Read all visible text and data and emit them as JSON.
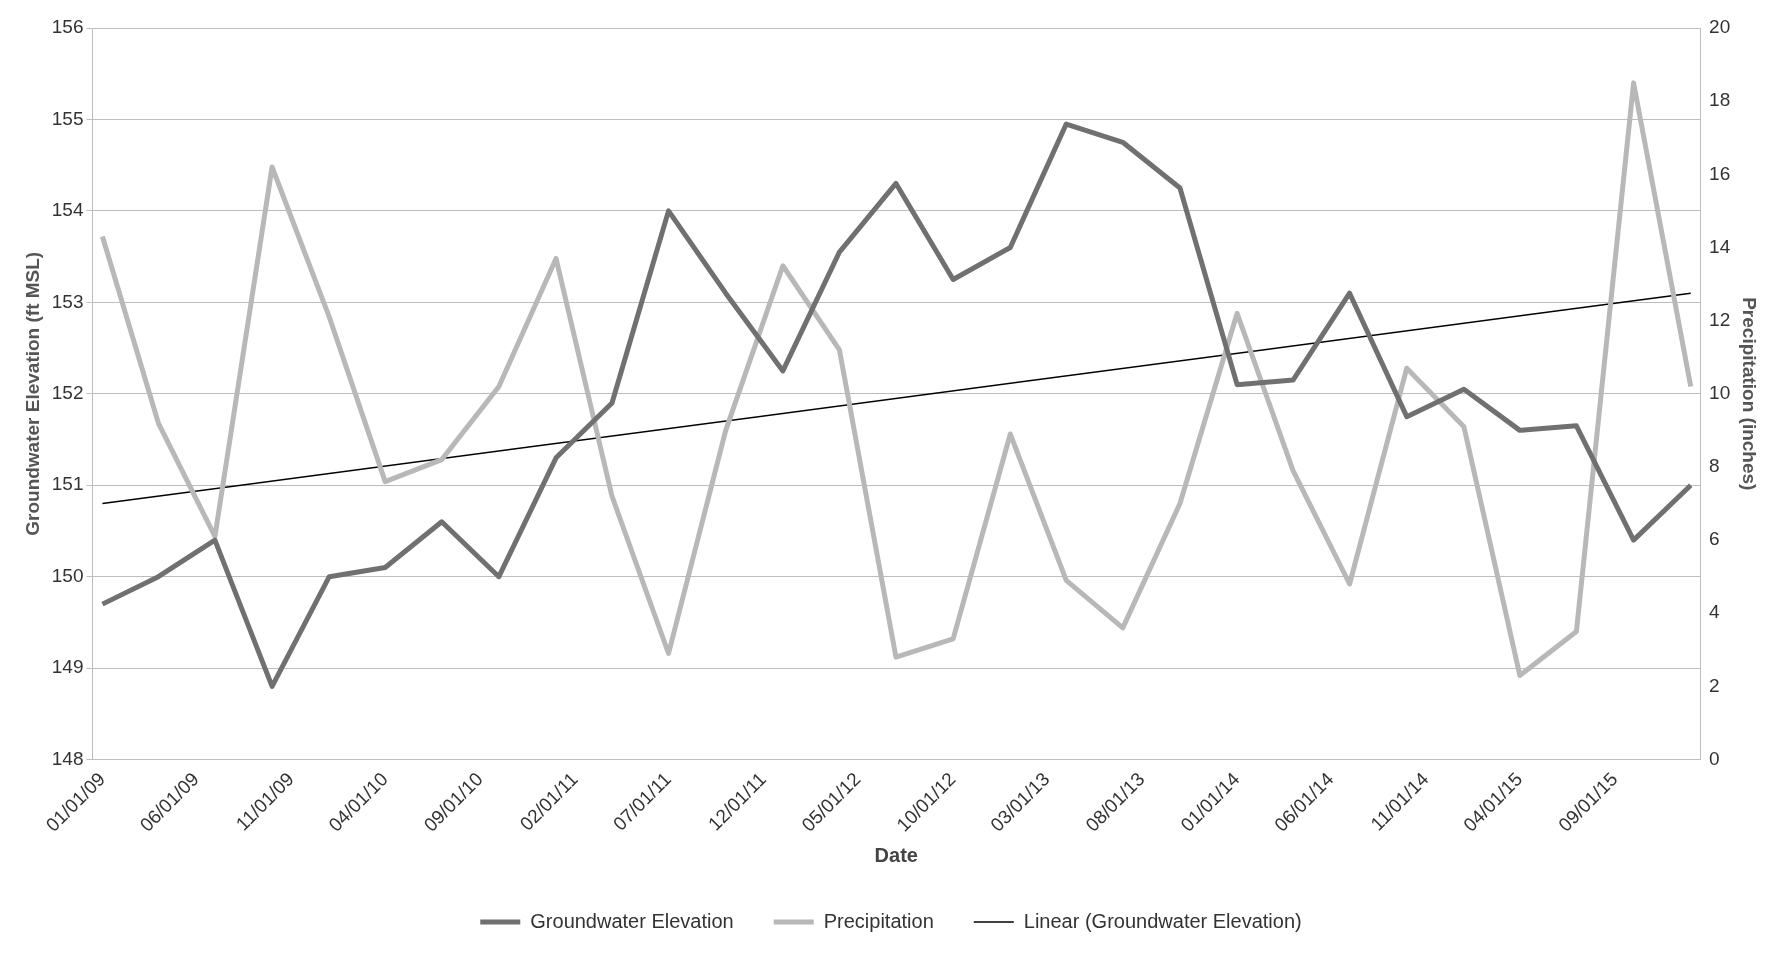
{
  "chart_data": {
    "type": "line",
    "xlabel": "Date",
    "ylabel": "Groundwater Elevation (ft MSL)",
    "y2label": "Precipitation (inches)",
    "x": [
      "2009-01-01",
      "2009-04-01",
      "2009-07-01",
      "2009-10-01",
      "2010-01-01",
      "2010-04-01",
      "2010-07-01",
      "2010-10-01",
      "2011-01-01",
      "2011-04-01",
      "2011-07-01",
      "2011-10-01",
      "2012-01-01",
      "2012-04-01",
      "2012-07-01",
      "2012-10-01",
      "2013-01-01",
      "2013-04-01",
      "2013-07-01",
      "2013-10-01",
      "2014-01-01",
      "2014-04-01",
      "2014-07-01",
      "2014-10-01",
      "2015-01-01",
      "2015-04-01",
      "2015-07-01",
      "2015-10-01",
      "2016-01-01"
    ],
    "series": [
      {
        "name": "Groundwater Elevation",
        "color": "#707070",
        "values": [
          149.7,
          150.0,
          150.4,
          148.8,
          150.0,
          150.1,
          150.6,
          150.0,
          151.3,
          151.9,
          154.0,
          153.1,
          152.25,
          153.55,
          154.3,
          153.25,
          153.6,
          154.95,
          154.75,
          154.25,
          152.1,
          152.15,
          153.1,
          151.75,
          152.05,
          151.6,
          151.65,
          150.4,
          151.0
        ]
      },
      {
        "name": "Precipitation",
        "color": "#b8b8b8",
        "axis": "y2",
        "values": [
          14.3,
          9.2,
          6.1,
          16.2,
          12.1,
          7.6,
          8.2,
          10.2,
          13.7,
          7.2,
          2.9,
          9.0,
          13.5,
          11.2,
          2.8,
          3.3,
          8.9,
          4.9,
          3.6,
          7.0,
          12.2,
          7.9,
          4.8,
          10.7,
          9.1,
          2.3,
          3.5,
          18.5,
          10.2
        ]
      },
      {
        "name": "Linear (Groundwater Elevation)",
        "color": "#000000",
        "x": [
          "2009-01-01",
          "2016-01-01"
        ],
        "values": [
          150.8,
          153.1
        ]
      }
    ],
    "xlim": [
      "2008-12-16",
      "2016-01-16"
    ],
    "xticks": [
      {
        "value": "2009-01-01",
        "label": "01/01/09"
      },
      {
        "value": "2009-06-01",
        "label": "06/01/09"
      },
      {
        "value": "2009-11-01",
        "label": "11/01/09"
      },
      {
        "value": "2010-04-01",
        "label": "04/01/10"
      },
      {
        "value": "2010-09-01",
        "label": "09/01/10"
      },
      {
        "value": "2011-02-01",
        "label": "02/01/11"
      },
      {
        "value": "2011-07-01",
        "label": "07/01/11"
      },
      {
        "value": "2011-12-01",
        "label": "12/01/11"
      },
      {
        "value": "2012-05-01",
        "label": "05/01/12"
      },
      {
        "value": "2012-10-01",
        "label": "10/01/12"
      },
      {
        "value": "2013-03-01",
        "label": "03/01/13"
      },
      {
        "value": "2013-08-01",
        "label": "08/01/13"
      },
      {
        "value": "2014-01-01",
        "label": "01/01/14"
      },
      {
        "value": "2014-06-01",
        "label": "06/01/14"
      },
      {
        "value": "2014-11-01",
        "label": "11/01/14"
      },
      {
        "value": "2015-04-01",
        "label": "04/01/15"
      },
      {
        "value": "2015-09-01",
        "label": "09/01/15"
      }
    ],
    "ylim": [
      148,
      156
    ],
    "yticks": [
      148,
      149,
      150,
      151,
      152,
      153,
      154,
      155,
      156
    ],
    "y2lim": [
      0,
      20
    ],
    "y2ticks": [
      0,
      2,
      4,
      6,
      8,
      10,
      12,
      14,
      16,
      18,
      20
    ],
    "grid": "y",
    "legend": "bottom",
    "marker": "none"
  }
}
